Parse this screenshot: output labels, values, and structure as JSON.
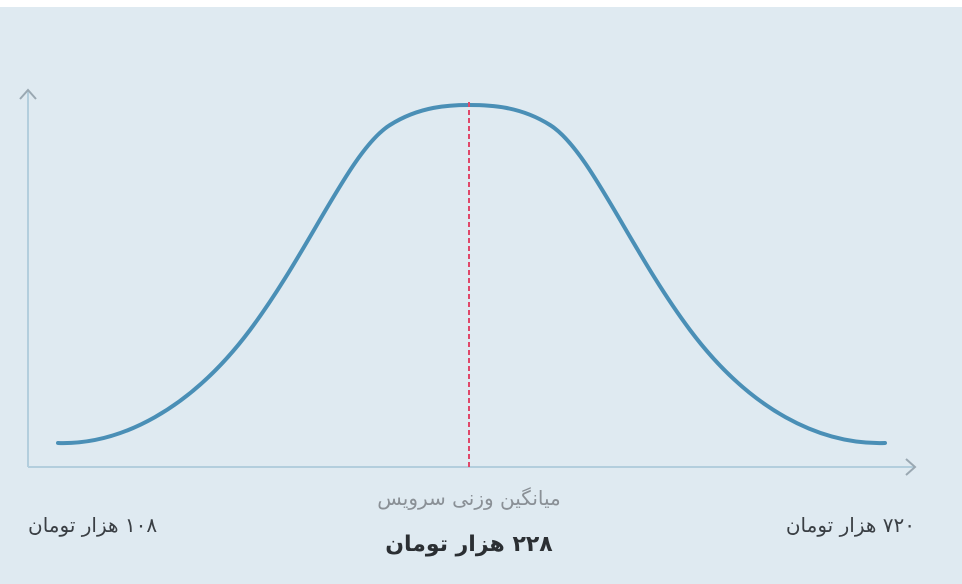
{
  "labels": {
    "min": "۱۰۸ هزار تومان",
    "max": "۷۲۰ هزار تومان",
    "mean_caption": "میانگین وزنی سرویس",
    "mean": "۲۲۸ هزار تومان"
  }
}
